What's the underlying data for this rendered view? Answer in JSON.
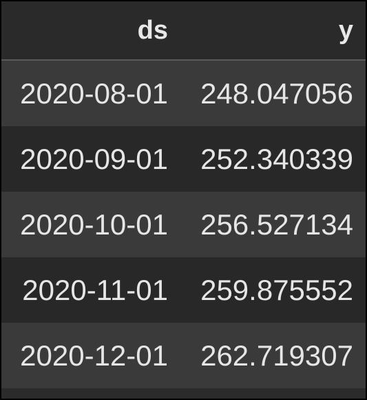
{
  "table": {
    "columns": [
      "ds",
      "y"
    ],
    "rows": [
      {
        "ds": "2020-08-01",
        "y": "248.047056"
      },
      {
        "ds": "2020-09-01",
        "y": "252.340339"
      },
      {
        "ds": "2020-10-01",
        "y": "256.527134"
      },
      {
        "ds": "2020-11-01",
        "y": "259.875552"
      },
      {
        "ds": "2020-12-01",
        "y": "262.719307"
      }
    ]
  },
  "colors": {
    "background": "#2b2b2b",
    "row_odd": "#3a3a3a",
    "row_even": "#282828",
    "text": "#e6e6e6",
    "header_border": "#5a5a5a"
  }
}
